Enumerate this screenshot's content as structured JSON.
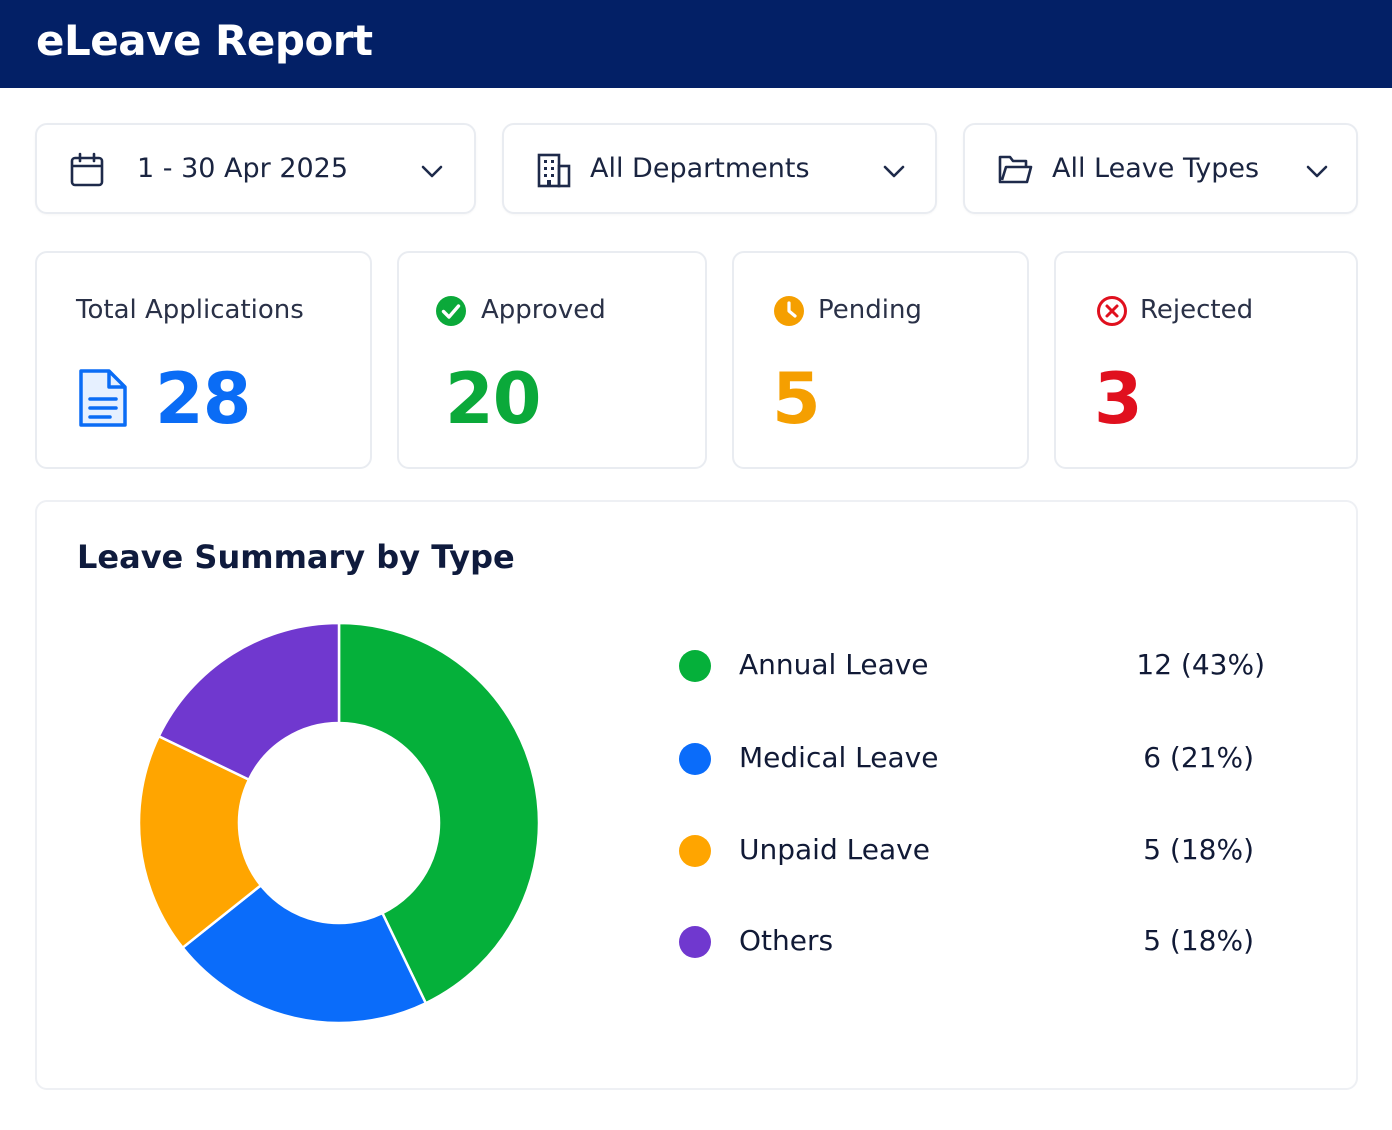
{
  "header": {
    "title": "eLeave Report"
  },
  "filters": {
    "date_range": {
      "label": "1 - 30 Apr 2025",
      "icon": "calendar-icon"
    },
    "department": {
      "label": "All Departments",
      "icon": "building-icon"
    },
    "leave_type": {
      "label": "All Leave Types",
      "icon": "folder-icon"
    }
  },
  "stats": {
    "total": {
      "label": "Total Applications",
      "value": "28",
      "color": "#0a6cf5",
      "icon": "document-icon"
    },
    "approved": {
      "label": "Approved",
      "value": "20",
      "color": "#0ba93a",
      "icon": "check-circle-icon"
    },
    "pending": {
      "label": "Pending",
      "value": "5",
      "color": "#f59f00",
      "icon": "clock-icon"
    },
    "rejected": {
      "label": "Rejected",
      "value": "3",
      "color": "#e0101e",
      "icon": "x-circle-icon"
    }
  },
  "summary": {
    "title": "Leave Summary by Type"
  },
  "chart_data": {
    "type": "pie",
    "donut": true,
    "title": "Leave Summary by Type",
    "categories": [
      "Annual Leave",
      "Medical Leave",
      "Unpaid Leave",
      "Others"
    ],
    "values": [
      12,
      6,
      5,
      5
    ],
    "value_labels": [
      "12 (43%)",
      "6 (21%)",
      "5 (18%)",
      "5 (18%)"
    ],
    "colors": [
      "#05b03a",
      "#0a6cfa",
      "#ffa500",
      "#7038cf"
    ],
    "legend": "right"
  }
}
